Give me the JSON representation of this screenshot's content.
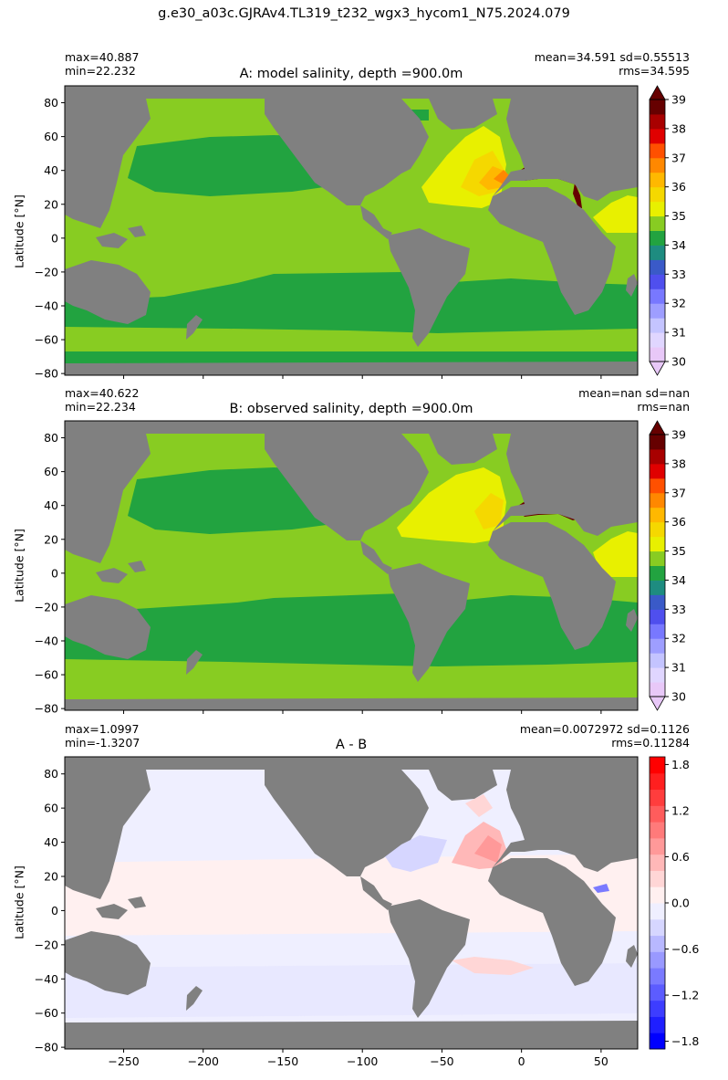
{
  "figure": {
    "suptitle": "g.e30_a03c.GJRAv4.TL319_t232_wgx3_hycom1_N75.2024.079"
  },
  "colors": {
    "land": "#808080",
    "salinity_levels": [
      "#e8c8f8",
      "#e0d6ff",
      "#c4c4ff",
      "#9e9eff",
      "#7878ff",
      "#4f4fee",
      "#3a5ac8",
      "#1e8c80",
      "#22a340",
      "#88cc22",
      "#e8f000",
      "#f5d800",
      "#ffb800",
      "#ff8800",
      "#ff5000",
      "#e00000",
      "#a80000",
      "#660000"
    ],
    "diff_levels": [
      "#0000ff",
      "#1f1fff",
      "#3d3dff",
      "#5c5cff",
      "#7a7aff",
      "#9999ff",
      "#b8b8ff",
      "#d6d6ff",
      "#efefff",
      "#fff0f0",
      "#ffd6d6",
      "#ffb8b8",
      "#ff9999",
      "#ff7a7a",
      "#ff5c5c",
      "#ff3d3d",
      "#ff1f1f",
      "#ff0000"
    ]
  },
  "panels": [
    {
      "id": "A",
      "title": "A: model salinity, depth =900.0m",
      "stat_left": "max=40.887\nmin=22.232",
      "stat_right": "mean=34.591 sd=0.55513\nrms=34.595",
      "ylabel": "Latitude [°N]",
      "yticks": [
        "80",
        "60",
        "40",
        "20",
        "0",
        "−20",
        "−40",
        "−60",
        "−80"
      ],
      "colorbar_ticks": [
        "39",
        "38",
        "37",
        "36",
        "35",
        "34",
        "33",
        "32",
        "31",
        "30"
      ],
      "field": "salinity"
    },
    {
      "id": "B",
      "title": "B: observed salinity, depth =900.0m",
      "stat_left": "max=40.622\nmin=22.234",
      "stat_right": "mean=nan sd=nan\nrms=nan",
      "ylabel": "Latitude [°N]",
      "yticks": [
        "80",
        "60",
        "40",
        "20",
        "0",
        "−20",
        "−40",
        "−60",
        "−80"
      ],
      "colorbar_ticks": [
        "39",
        "38",
        "37",
        "36",
        "35",
        "34",
        "33",
        "32",
        "31",
        "30"
      ],
      "field": "salinity"
    },
    {
      "id": "C",
      "title": "A - B",
      "stat_left": "max=1.0997\nmin=-1.3207",
      "stat_right": "mean=0.0072972 sd=0.1126\nrms=0.11284",
      "ylabel": "Latitude [°N]",
      "yticks": [
        "80",
        "60",
        "40",
        "20",
        "0",
        "−20",
        "−40",
        "−60",
        "−80"
      ],
      "colorbar_ticks": [
        "1.8",
        "1.2",
        "0.6",
        "0.0",
        "−0.6",
        "−1.2",
        "−1.8"
      ],
      "field": "difference"
    }
  ],
  "xaxis": {
    "ticks": [
      "−250",
      "−200",
      "−150",
      "−100",
      "−50",
      "0",
      "50"
    ],
    "range": [
      -287,
      73
    ]
  },
  "yaxis": {
    "range": [
      -81,
      90
    ]
  }
}
